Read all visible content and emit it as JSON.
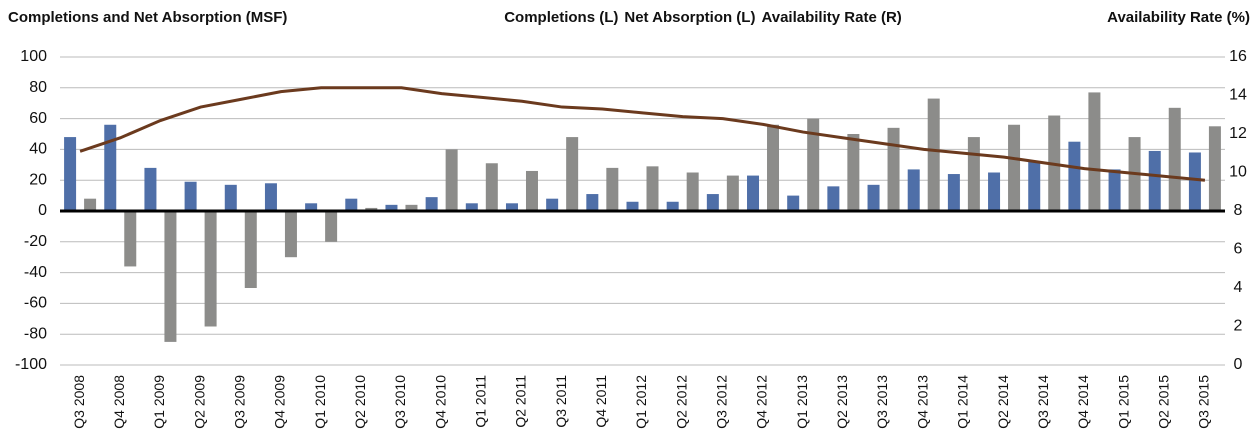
{
  "chart_data": {
    "type": "bar",
    "title": "Completions and Net Absorption (MSF)",
    "y2_title": "Availability Rate (%)",
    "categories": [
      "Q3 2008",
      "Q4 2008",
      "Q1 2009",
      "Q2 2009",
      "Q3 2009",
      "Q4 2009",
      "Q1 2010",
      "Q2 2010",
      "Q3 2010",
      "Q4 2010",
      "Q1 2011",
      "Q2 2011",
      "Q3 2011",
      "Q4 2011",
      "Q1 2012",
      "Q2 2012",
      "Q3 2012",
      "Q4 2012",
      "Q1 2013",
      "Q2 2013",
      "Q3 2013",
      "Q4 2013",
      "Q1 2014",
      "Q2 2014",
      "Q3 2014",
      "Q4 2014",
      "Q1 2015",
      "Q2 2015",
      "Q3 2015"
    ],
    "series": [
      {
        "name": "Completions (L)",
        "color": "#4f6fa8",
        "values": [
          48,
          56,
          28,
          19,
          17,
          18,
          5,
          8,
          4,
          9,
          5,
          5,
          8,
          11,
          6,
          6,
          11,
          23,
          10,
          16,
          17,
          27,
          24,
          25,
          32,
          45,
          27,
          39,
          38
        ]
      },
      {
        "name": "Net Absorption (L)",
        "color": "#8c8c8a",
        "values": [
          8,
          -36,
          -85,
          -75,
          -50,
          -30,
          -20,
          2,
          4,
          40,
          31,
          26,
          48,
          28,
          29,
          25,
          23,
          56,
          60,
          50,
          54,
          73,
          48,
          56,
          62,
          77,
          48,
          67,
          55
        ]
      },
      {
        "name": "Availability Rate (R)",
        "color": "#6b3a1e",
        "type": "line",
        "axis": "y2",
        "values": [
          11.1,
          11.8,
          12.7,
          13.4,
          13.8,
          14.2,
          14.4,
          14.4,
          14.4,
          14.1,
          13.9,
          13.7,
          13.4,
          13.3,
          13.1,
          12.9,
          12.8,
          12.5,
          12.1,
          11.8,
          11.5,
          11.2,
          11.0,
          10.8,
          10.5,
          10.2,
          10.0,
          9.8,
          9.6
        ]
      }
    ],
    "ylim": [
      -100,
      100
    ],
    "yticks": [
      -100,
      -80,
      -60,
      -40,
      -20,
      0,
      20,
      40,
      60,
      80,
      100
    ],
    "y2lim": [
      0,
      16
    ],
    "y2ticks": [
      0,
      2,
      4,
      6,
      8,
      10,
      12,
      14,
      16
    ],
    "grid": true
  }
}
